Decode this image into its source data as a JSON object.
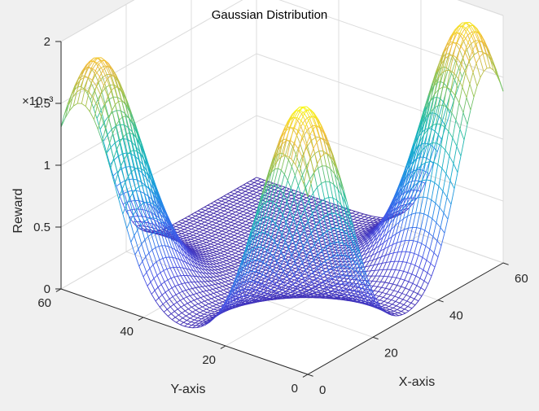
{
  "chart_data": {
    "type": "surface",
    "title": "Gaussian Distribution",
    "xlabel": "X-axis",
    "ylabel": "Y-axis",
    "zlabel": "Reward",
    "exponent_label": "×10⁻³",
    "grid": true,
    "colormap": "parula",
    "xlim": [
      0,
      60
    ],
    "ylim": [
      0,
      60
    ],
    "zlim": [
      0,
      0.002
    ],
    "x_ticks": [
      0,
      20,
      40,
      60
    ],
    "x_tick_labels": [
      "0",
      "20",
      "40",
      "60"
    ],
    "y_ticks": [
      0,
      20,
      40,
      60
    ],
    "y_tick_labels": [
      "0",
      "20",
      "40",
      "60"
    ],
    "z_ticks": [
      0,
      0.0005,
      0.001,
      0.0015,
      0.002
    ],
    "z_tick_labels": [
      "0",
      "0.5",
      "1",
      "1.5",
      "2"
    ],
    "grid_size": 61,
    "peaks": [
      {
        "x": 55,
        "y": 5,
        "amplitude": 0.00196,
        "sigma": 8.5
      },
      {
        "x": 5,
        "y": 5,
        "amplitude": 0.00203,
        "sigma": 8.5
      },
      {
        "x": 5,
        "y": 55,
        "amplitude": 0.00185,
        "sigma": 8.5
      }
    ]
  }
}
